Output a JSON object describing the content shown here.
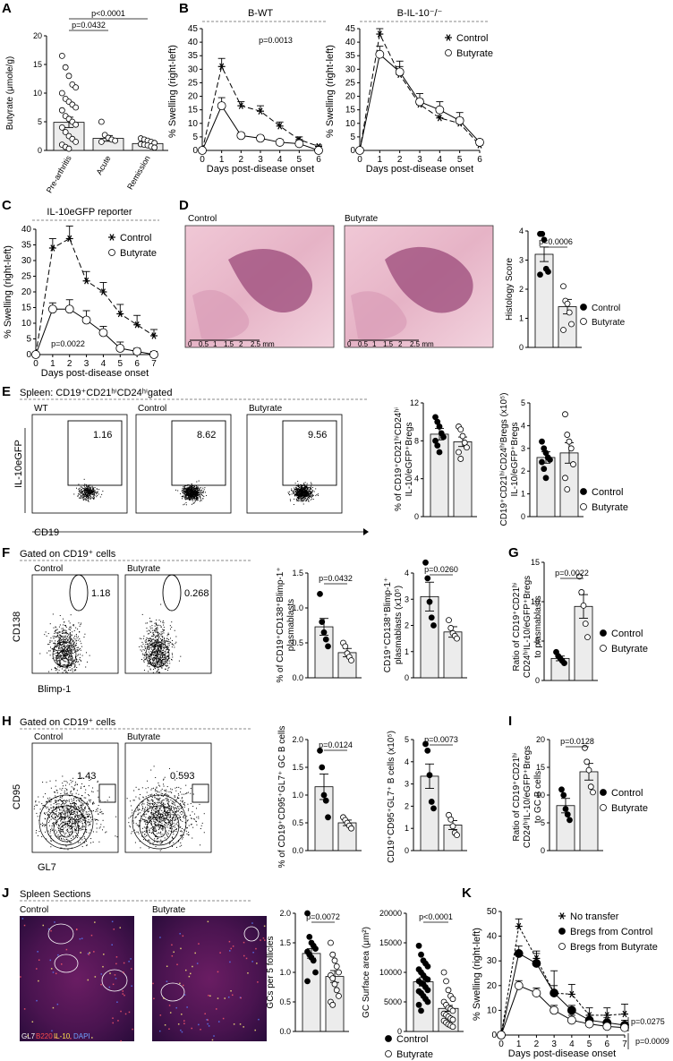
{
  "panel_labels": [
    "A",
    "B",
    "C",
    "D",
    "E",
    "F",
    "G",
    "H",
    "I",
    "J",
    "K"
  ],
  "panel_a": {
    "ylabel": "Butyrate (μmole/g)",
    "yticks": [
      "0",
      "5",
      "10",
      "15",
      "20"
    ],
    "groups": [
      "Pre-arthritis",
      "Acute",
      "Remission"
    ],
    "p_values": [
      "p=0.0432",
      "p<0.0001"
    ],
    "chart_data": {
      "type": "bar",
      "categories": [
        "Pre-arthritis",
        "Acute",
        "Remission"
      ],
      "values": [
        4.9,
        2.1,
        1.2
      ],
      "errors": [
        0.9,
        0.5,
        0.2
      ],
      "points": [
        [
          16.5,
          14.5,
          13,
          11.5,
          11,
          10,
          9,
          8.5,
          8,
          7.5,
          7,
          6,
          5.5,
          5,
          4.5,
          4,
          3.2,
          2.5,
          2,
          1.5,
          1,
          0.6,
          0.3
        ],
        [
          5,
          2.7,
          2.2,
          1.9,
          1.7,
          1.5
        ],
        [
          2.1,
          1.9,
          1.7,
          1.5,
          1.3,
          1.1,
          1,
          0.9,
          0.7,
          0.5
        ]
      ],
      "ylim": [
        0,
        20
      ]
    }
  },
  "panel_b": {
    "left": {
      "title": "B-WT",
      "pvalue": "p=0.0013",
      "ylabel": "% Swelling (right-left)",
      "xlabel": "Days post-disease onset",
      "xticks": [
        "0",
        "1",
        "2",
        "3",
        "4",
        "5",
        "6"
      ],
      "yticks": [
        "0",
        "5",
        "10",
        "15",
        "20",
        "25",
        "30",
        "35",
        "40",
        "45"
      ],
      "chart_data": {
        "type": "line",
        "x": [
          0,
          1,
          2,
          3,
          4,
          5,
          6
        ],
        "series": [
          {
            "name": "Control",
            "values": [
              0,
              31,
              16.5,
              14.5,
              9,
              4,
              1.5
            ],
            "errors": [
              0,
              3,
              1.5,
              2,
              1.5,
              1,
              0.5
            ]
          },
          {
            "name": "Butyrate",
            "values": [
              0,
              16.5,
              5.5,
              4.5,
              3,
              2.5,
              0
            ],
            "errors": [
              0,
              3,
              1,
              1,
              1,
              1,
              0.5
            ]
          }
        ],
        "ylim": [
          0,
          45
        ]
      }
    },
    "right": {
      "title": "B-IL-10⁻/⁻",
      "ylabel": "% Swelling (right-left)",
      "xlabel": "Days post-disease onset",
      "xticks": [
        "0",
        "1",
        "2",
        "3",
        "4",
        "5",
        "6"
      ],
      "yticks": [
        "0",
        "5",
        "10",
        "15",
        "20",
        "25",
        "30",
        "35",
        "40",
        "45"
      ],
      "legend": [
        "Control",
        "Butyrate"
      ],
      "chart_data": {
        "type": "line",
        "x": [
          0,
          1,
          2,
          3,
          4,
          5,
          6
        ],
        "series": [
          {
            "name": "Control",
            "values": [
              0,
              43,
              28,
              17,
              12,
              10,
              2
            ],
            "errors": [
              0,
              2,
              3,
              2,
              2,
              2,
              1
            ]
          },
          {
            "name": "Butyrate",
            "values": [
              0,
              35.5,
              29,
              18,
              15,
              11,
              3
            ],
            "errors": [
              0,
              3,
              4,
              3,
              3,
              3,
              1
            ]
          }
        ],
        "ylim": [
          0,
          45
        ]
      }
    }
  },
  "panel_c": {
    "title": "IL-10eGFP reporter",
    "pvalue": "p=0.0022",
    "ylabel": "% Swelling (right-left)",
    "xlabel": "Days post-disease onset",
    "xticks": [
      "0",
      "1",
      "2",
      "3",
      "4",
      "5",
      "6",
      "7"
    ],
    "yticks": [
      "0",
      "5",
      "10",
      "15",
      "20",
      "25",
      "30",
      "35",
      "40"
    ],
    "legend": [
      "Control",
      "Butyrate"
    ],
    "chart_data": {
      "type": "line",
      "x": [
        0,
        1,
        2,
        3,
        4,
        5,
        6,
        7
      ],
      "series": [
        {
          "name": "Control",
          "values": [
            0,
            34,
            37,
            23.5,
            20,
            13,
            9.5,
            6
          ],
          "errors": [
            0,
            3,
            4,
            3,
            3,
            3,
            3,
            2
          ]
        },
        {
          "name": "Butyrate",
          "values": [
            0,
            14.5,
            14.5,
            11,
            7,
            2,
            1,
            0
          ],
          "errors": [
            0,
            2,
            3,
            3,
            2,
            2,
            1,
            1
          ]
        }
      ],
      "ylim": [
        0,
        40
      ]
    }
  },
  "panel_d": {
    "image_labels": [
      "Control",
      "Butyrate"
    ],
    "scale_labels": [
      "0",
      "0.5",
      "1",
      "1.5",
      "2",
      "2.5 mm"
    ],
    "pvalue": "p=0.0006",
    "ylabel": "Histology Score",
    "yticks": [
      "0",
      "1",
      "2",
      "3",
      "4"
    ],
    "legend": [
      "Control",
      "Butyrate"
    ],
    "chart_data": {
      "type": "bar",
      "categories": [
        "Control",
        "Butyrate"
      ],
      "values": [
        3.2,
        1.4
      ],
      "errors": [
        0.25,
        0.25
      ],
      "points": [
        [
          3.9,
          3.9,
          3.7,
          2.7,
          2.6,
          2.5
        ],
        [
          2.1,
          1.6,
          1.5,
          1.2,
          0.8,
          0.6
        ]
      ],
      "ylim": [
        0,
        4
      ]
    }
  },
  "panel_e": {
    "gating_title": "Spleen: CD19⁺CD21ʰⁱCD24ʰⁱgated",
    "flow_labels": [
      "WT",
      "Control",
      "Butyrate"
    ],
    "gate_values": [
      "1.16",
      "8.62",
      "9.56"
    ],
    "y_axis": "IL-10eGFP",
    "x_axis": "CD19",
    "chart1": {
      "ylabel_lines": [
        "% of CD19⁺CD21ʰⁱCD24ʰⁱ",
        "IL-10/eGFP⁺Bregs"
      ],
      "yticks": [
        "0",
        "4",
        "8",
        "12"
      ],
      "chart_data": {
        "type": "bar",
        "categories": [
          "Control",
          "Butyrate"
        ],
        "values": [
          8.7,
          7.9
        ],
        "errors": [
          0.6,
          0.5
        ],
        "points": [
          [
            10.5,
            10,
            9.5,
            8.8,
            8.4,
            8,
            7.5,
            6.8
          ],
          [
            9.5,
            9.2,
            8.5,
            7.8,
            7.3,
            6.8,
            6.1
          ]
        ],
        "ylim": [
          0,
          12
        ]
      }
    },
    "chart2": {
      "ylabel_lines": [
        "CD19⁺CD21ʰⁱCD24ʰⁱBregs (x10⁵)",
        "IL-10/eGFP⁺Bregs"
      ],
      "yticks": [
        "0",
        "1",
        "2",
        "3",
        "4",
        "5"
      ],
      "legend": [
        "Control",
        "Butyrate"
      ],
      "chart_data": {
        "type": "bar",
        "categories": [
          "Control",
          "Butyrate"
        ],
        "values": [
          2.6,
          2.8
        ],
        "errors": [
          0.25,
          0.45
        ],
        "points": [
          [
            3.3,
            3,
            2.8,
            2.6,
            2.5,
            2.4,
            2.1,
            1.7
          ],
          [
            4.5,
            3.6,
            3.3,
            3,
            2.3,
            1.7,
            1.2
          ]
        ],
        "ylim": [
          0,
          5
        ]
      }
    }
  },
  "panel_f": {
    "gating_title": "Gated on CD19⁺ cells",
    "flow_labels": [
      "Control",
      "Butyrate"
    ],
    "gate_values": [
      "1.18",
      "0.268"
    ],
    "y_axis": "CD138",
    "x_axis": "Blimp-1",
    "chart1": {
      "pvalue": "p=0.0432",
      "ylabel_lines": [
        "% of CD19⁺CD138⁺Blimp-1⁺",
        "plasmablasts"
      ],
      "yticks": [
        "0.0",
        "0.5",
        "1.0",
        "1.5"
      ],
      "chart_data": {
        "type": "bar",
        "categories": [
          "Control",
          "Butyrate"
        ],
        "values": [
          0.73,
          0.36
        ],
        "errors": [
          0.12,
          0.06
        ],
        "points": [
          [
            1.2,
            0.8,
            0.65,
            0.55,
            0.45
          ],
          [
            0.5,
            0.45,
            0.35,
            0.3,
            0.25
          ]
        ],
        "ylim": [
          0,
          1.5
        ]
      }
    },
    "chart2": {
      "pvalue": "p=0.0260",
      "ylabel_lines": [
        "CD19⁺CD138⁺Blimp-1⁺",
        "plasmablasts (x10⁵)"
      ],
      "yticks": [
        "0",
        "1",
        "2",
        "3",
        "4"
      ],
      "chart_data": {
        "type": "bar",
        "categories": [
          "Control",
          "Butyrate"
        ],
        "values": [
          3.1,
          1.75
        ],
        "errors": [
          0.55,
          0.2
        ],
        "points": [
          [
            4.4,
            3.8,
            2.9,
            2.3,
            2
          ],
          [
            2.2,
            1.9,
            1.7,
            1.6,
            1.5
          ]
        ],
        "ylim": [
          0,
          4
        ]
      }
    }
  },
  "panel_g": {
    "pvalue": "p=0.0022",
    "ylabel_lines": [
      "Ratio of CD19⁺CD21ʰⁱ",
      "CD24ʰⁱIL-10/eGFP⁺Bregs",
      "to plasmablasts"
    ],
    "yticks": [
      "0",
      "5",
      "10",
      "15"
    ],
    "legend": [
      "Control",
      "Butyrate"
    ],
    "chart_data": {
      "type": "bar",
      "categories": [
        "Control",
        "Butyrate"
      ],
      "values": [
        2.8,
        9.4
      ],
      "errors": [
        0.3,
        1.5
      ],
      "points": [
        [
          3.6,
          3.1,
          2.8,
          2.5,
          2.2
        ],
        [
          13.2,
          11.2,
          9.5,
          7.2,
          5.5
        ]
      ],
      "ylim": [
        0,
        15
      ]
    }
  },
  "panel_h": {
    "gating_title": "Gated on CD19⁺ cells",
    "flow_labels": [
      "Control",
      "Butyrate"
    ],
    "gate_values": [
      "1.43",
      "0.593"
    ],
    "y_axis": "CD95",
    "x_axis": "GL7",
    "chart1": {
      "pvalue": "p=0.0124",
      "ylabel_lines": [
        "% of CD19⁺CD95⁺GL7⁺ GC B cells"
      ],
      "yticks": [
        "0.0",
        "0.5",
        "1.0",
        "1.5",
        "2.0"
      ],
      "chart_data": {
        "type": "bar",
        "categories": [
          "Control",
          "Butyrate"
        ],
        "values": [
          1.15,
          0.5
        ],
        "errors": [
          0.23,
          0.05
        ],
        "points": [
          [
            1.8,
            1.5,
            1,
            0.9,
            0.6
          ],
          [
            0.6,
            0.55,
            0.5,
            0.45,
            0.4
          ]
        ],
        "ylim": [
          0,
          2
        ]
      }
    },
    "chart2": {
      "pvalue": "p=0.0073",
      "ylabel_lines": [
        "CD19⁺CD95⁺GL7⁺ B cells (x10⁵)"
      ],
      "yticks": [
        "0",
        "1",
        "2",
        "3",
        "4",
        "5"
      ],
      "chart_data": {
        "type": "bar",
        "categories": [
          "Control",
          "Butyrate"
        ],
        "values": [
          3.35,
          1.15
        ],
        "errors": [
          0.55,
          0.2
        ],
        "points": [
          [
            4.8,
            4.5,
            3.4,
            2.2,
            1.9
          ],
          [
            1.6,
            1.4,
            1.1,
            0.8,
            0.7
          ]
        ],
        "ylim": [
          0,
          5
        ]
      }
    }
  },
  "panel_i": {
    "pvalue": "p=0.0128",
    "ylabel_lines": [
      "Ratio of CD19⁺CD21ʰⁱ",
      "CD24ʰⁱIL-10/eGFP⁺Bregs",
      "to GC B cells"
    ],
    "yticks": [
      "0",
      "5",
      "10",
      "15",
      "20"
    ],
    "legend": [
      "Control",
      "Butyrate"
    ],
    "chart_data": {
      "type": "bar",
      "categories": [
        "Control",
        "Butyrate"
      ],
      "values": [
        8.1,
        14.2
      ],
      "errors": [
        1.3,
        1.5
      ],
      "points": [
        [
          11,
          10,
          7.5,
          6.5,
          5.5
        ],
        [
          18.5,
          16,
          14.5,
          11.5,
          10.5
        ]
      ],
      "ylim": [
        0,
        20
      ]
    }
  },
  "panel_j": {
    "title": "Spleen Sections",
    "image_labels": [
      "Control",
      "Butyrate"
    ],
    "stain_labels": [
      "GL7",
      "B220",
      "IL-10",
      "DAPI"
    ],
    "chart1": {
      "pvalue": "p=0.0072",
      "ylabel": "GCs per 5 follicles",
      "yticks": [
        "0.0",
        "0.5",
        "1.0",
        "1.5",
        "2.0"
      ],
      "chart_data": {
        "type": "bar",
        "categories": [
          "Control",
          "Butyrate"
        ],
        "values": [
          1.32,
          0.93
        ],
        "errors": [
          0.08,
          0.1
        ],
        "points": [
          [
            2,
            1.6,
            1.5,
            1.45,
            1.4,
            1.35,
            1.3,
            1.25,
            1.2,
            1,
            0.85
          ],
          [
            1.5,
            1.3,
            1.2,
            1.1,
            1,
            0.95,
            0.9,
            0.8,
            0.7,
            0.6,
            0.5,
            0.45
          ]
        ],
        "ylim": [
          0,
          2
        ]
      }
    },
    "chart2": {
      "pvalue": "p<0.0001",
      "ylabel": "GC Surface area (μm²)",
      "yticks": [
        "0",
        "5000",
        "10000",
        "15000",
        "20000"
      ],
      "legend": [
        "Control",
        "Butyrate"
      ],
      "chart_data": {
        "type": "bar",
        "categories": [
          "Control",
          "Butyrate"
        ],
        "values": [
          8400,
          3900
        ],
        "errors": [
          700,
          500
        ],
        "points": [
          [
            14500,
            13000,
            12000,
            11500,
            11000,
            10500,
            10000,
            9500,
            9000,
            8800,
            8500,
            8200,
            8000,
            7500,
            7000,
            6800,
            6500,
            6000,
            5500,
            5000,
            4500,
            3500
          ],
          [
            10000,
            8500,
            7000,
            6000,
            5500,
            5000,
            4500,
            4000,
            3800,
            3500,
            3000,
            2800,
            2500,
            2200,
            2000,
            1800,
            1500,
            1200,
            1000,
            800
          ]
        ],
        "ylim": [
          0,
          20000
        ]
      }
    }
  },
  "panel_k": {
    "ylabel": "% Swelling (right-left)",
    "xlabel": "Days post-disease onset",
    "xticks": [
      "0",
      "1",
      "2",
      "3",
      "4",
      "5",
      "6",
      "7"
    ],
    "yticks": [
      "0",
      "10",
      "20",
      "30",
      "40",
      "50"
    ],
    "legend": [
      "No transfer",
      "Bregs from Control",
      "Bregs from Butyrate"
    ],
    "p_values": [
      "p=0.0275",
      "p=0.0009"
    ],
    "chart_data": {
      "type": "line",
      "x": [
        0,
        1,
        2,
        3,
        4,
        5,
        6,
        7
      ],
      "series": [
        {
          "name": "No transfer",
          "values": [
            0,
            44,
            31,
            17,
            16.5,
            8,
            8,
            8.5
          ],
          "errors": [
            0,
            3,
            3,
            9,
            4,
            3,
            3,
            4
          ]
        },
        {
          "name": "Bregs from Control",
          "values": [
            0,
            33,
            29,
            17,
            10,
            6,
            5,
            4
          ],
          "errors": [
            0,
            3,
            4,
            3,
            2,
            2,
            2,
            2
          ]
        },
        {
          "name": "Bregs from Butyrate",
          "values": [
            0,
            20,
            17,
            10,
            6,
            4.5,
            3.5,
            3
          ],
          "errors": [
            0,
            2,
            2,
            2,
            2,
            1,
            1,
            1
          ]
        }
      ],
      "ylim": [
        0,
        50
      ]
    }
  }
}
